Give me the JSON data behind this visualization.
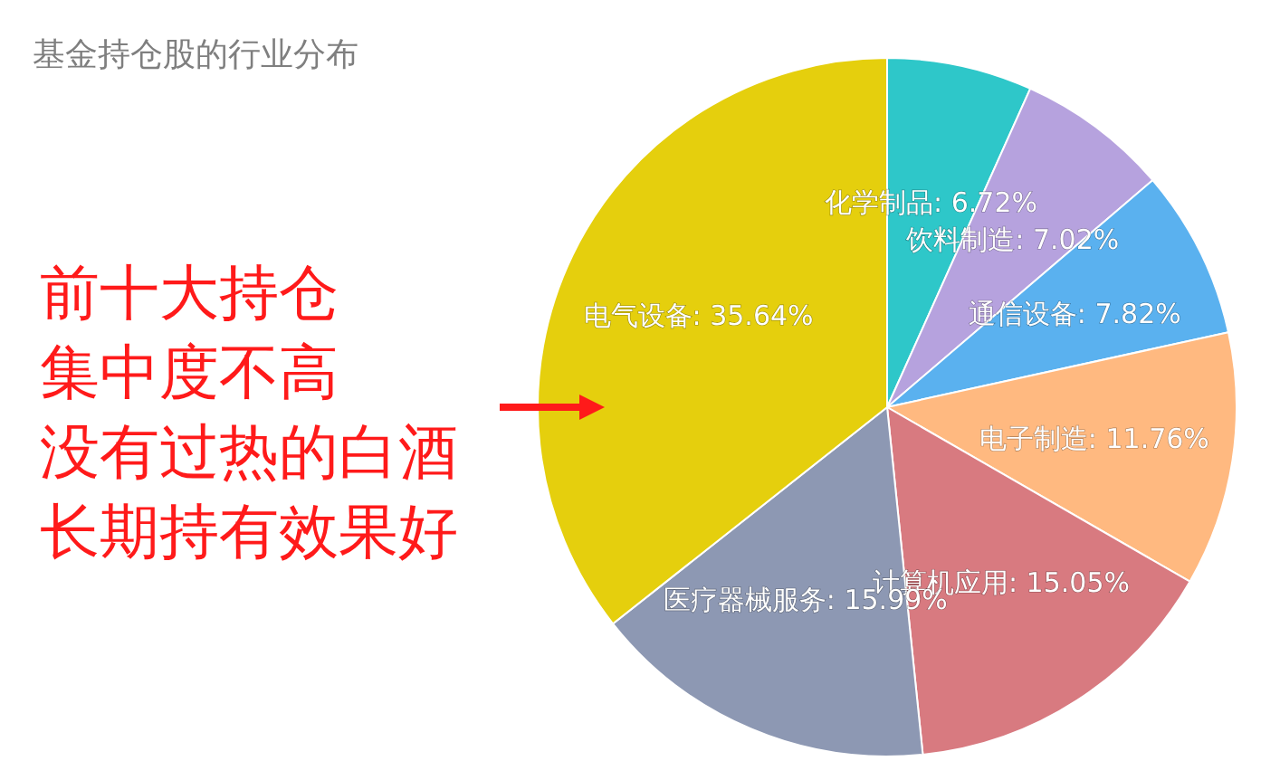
{
  "chart_data": {
    "type": "pie",
    "title": "基金持仓股的行业分布",
    "categories": [
      "化学制品",
      "饮料制造",
      "通信设备",
      "电子制造",
      "计算机应用",
      "医疗器械服务",
      "电气设备"
    ],
    "values": [
      6.72,
      7.02,
      7.82,
      11.76,
      15.05,
      15.99,
      35.64
    ],
    "value_labels": [
      "6.72%",
      "7.02%",
      "7.82%",
      "11.76%",
      "15.05%",
      "15.99%",
      "35.64%"
    ],
    "colors": [
      "#2ec7c9",
      "#b6a2de",
      "#5ab1ef",
      "#ffb980",
      "#d87a80",
      "#8d98b3",
      "#e5cf0d"
    ],
    "annotations": [
      "前十大持仓",
      "集中度不高",
      "没有过热的白酒",
      "长期持有效果好"
    ]
  }
}
